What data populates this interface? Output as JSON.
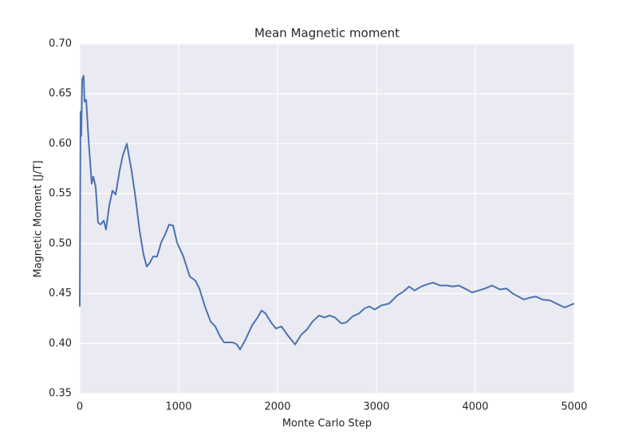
{
  "chart_data": {
    "type": "line",
    "title": "Mean Magnetic moment",
    "x_label": "Monte Carlo Step",
    "y_label": "Magnetic Moment [J/T]",
    "x": [
      0,
      8,
      16,
      24,
      40,
      48,
      65,
      89,
      121,
      137,
      161,
      185,
      210,
      242,
      266,
      298,
      331,
      363,
      403,
      435,
      476,
      524,
      565,
      605,
      645,
      677,
      710,
      742,
      782,
      823,
      863,
      903,
      944,
      984,
      1048,
      1113,
      1169,
      1210,
      1266,
      1323,
      1371,
      1419,
      1460,
      1508,
      1548,
      1589,
      1621,
      1677,
      1742,
      1798,
      1839,
      1879,
      1935,
      1984,
      2040,
      2097,
      2177,
      2242,
      2298,
      2355,
      2419,
      2476,
      2524,
      2581,
      2645,
      2694,
      2758,
      2823,
      2879,
      2927,
      2984,
      3048,
      3129,
      3210,
      3274,
      3331,
      3387,
      3452,
      3508,
      3573,
      3645,
      3710,
      3774,
      3831,
      3895,
      3968,
      4032,
      4097,
      4169,
      4250,
      4315,
      4379,
      4435,
      4492,
      4556,
      4613,
      4677,
      4758,
      4839,
      4903,
      5000
    ],
    "values": [
      0.437,
      0.632,
      0.608,
      0.664,
      0.668,
      0.642,
      0.644,
      0.604,
      0.56,
      0.567,
      0.557,
      0.521,
      0.519,
      0.523,
      0.514,
      0.538,
      0.553,
      0.549,
      0.573,
      0.588,
      0.6,
      0.573,
      0.545,
      0.513,
      0.489,
      0.477,
      0.481,
      0.487,
      0.487,
      0.501,
      0.509,
      0.519,
      0.518,
      0.501,
      0.487,
      0.467,
      0.463,
      0.455,
      0.437,
      0.422,
      0.417,
      0.407,
      0.401,
      0.401,
      0.401,
      0.399,
      0.394,
      0.404,
      0.418,
      0.426,
      0.433,
      0.43,
      0.421,
      0.415,
      0.417,
      0.409,
      0.399,
      0.409,
      0.414,
      0.422,
      0.428,
      0.426,
      0.428,
      0.426,
      0.42,
      0.421,
      0.427,
      0.43,
      0.435,
      0.437,
      0.434,
      0.438,
      0.44,
      0.448,
      0.452,
      0.457,
      0.453,
      0.457,
      0.459,
      0.461,
      0.458,
      0.458,
      0.457,
      0.458,
      0.455,
      0.451,
      0.453,
      0.455,
      0.458,
      0.454,
      0.455,
      0.45,
      0.447,
      0.444,
      0.446,
      0.447,
      0.444,
      0.443,
      0.439,
      0.436,
      0.44
    ],
    "color": "#4c72b0",
    "background": "#eaeaf2",
    "grid": true,
    "xlim": [
      0,
      5000
    ],
    "xticks": [
      0,
      1000,
      2000,
      3000,
      4000,
      5000
    ],
    "ylim": [
      0.35,
      0.7
    ],
    "yticks": [
      0.35,
      {
        "value": 0.4,
        "label": "0.40"
      },
      0.45,
      {
        "value": 0.5,
        "label": "0.50"
      },
      0.55,
      {
        "value": 0.6,
        "label": "0.60"
      },
      0.65,
      {
        "value": 0.7,
        "label": "0.70"
      }
    ]
  }
}
